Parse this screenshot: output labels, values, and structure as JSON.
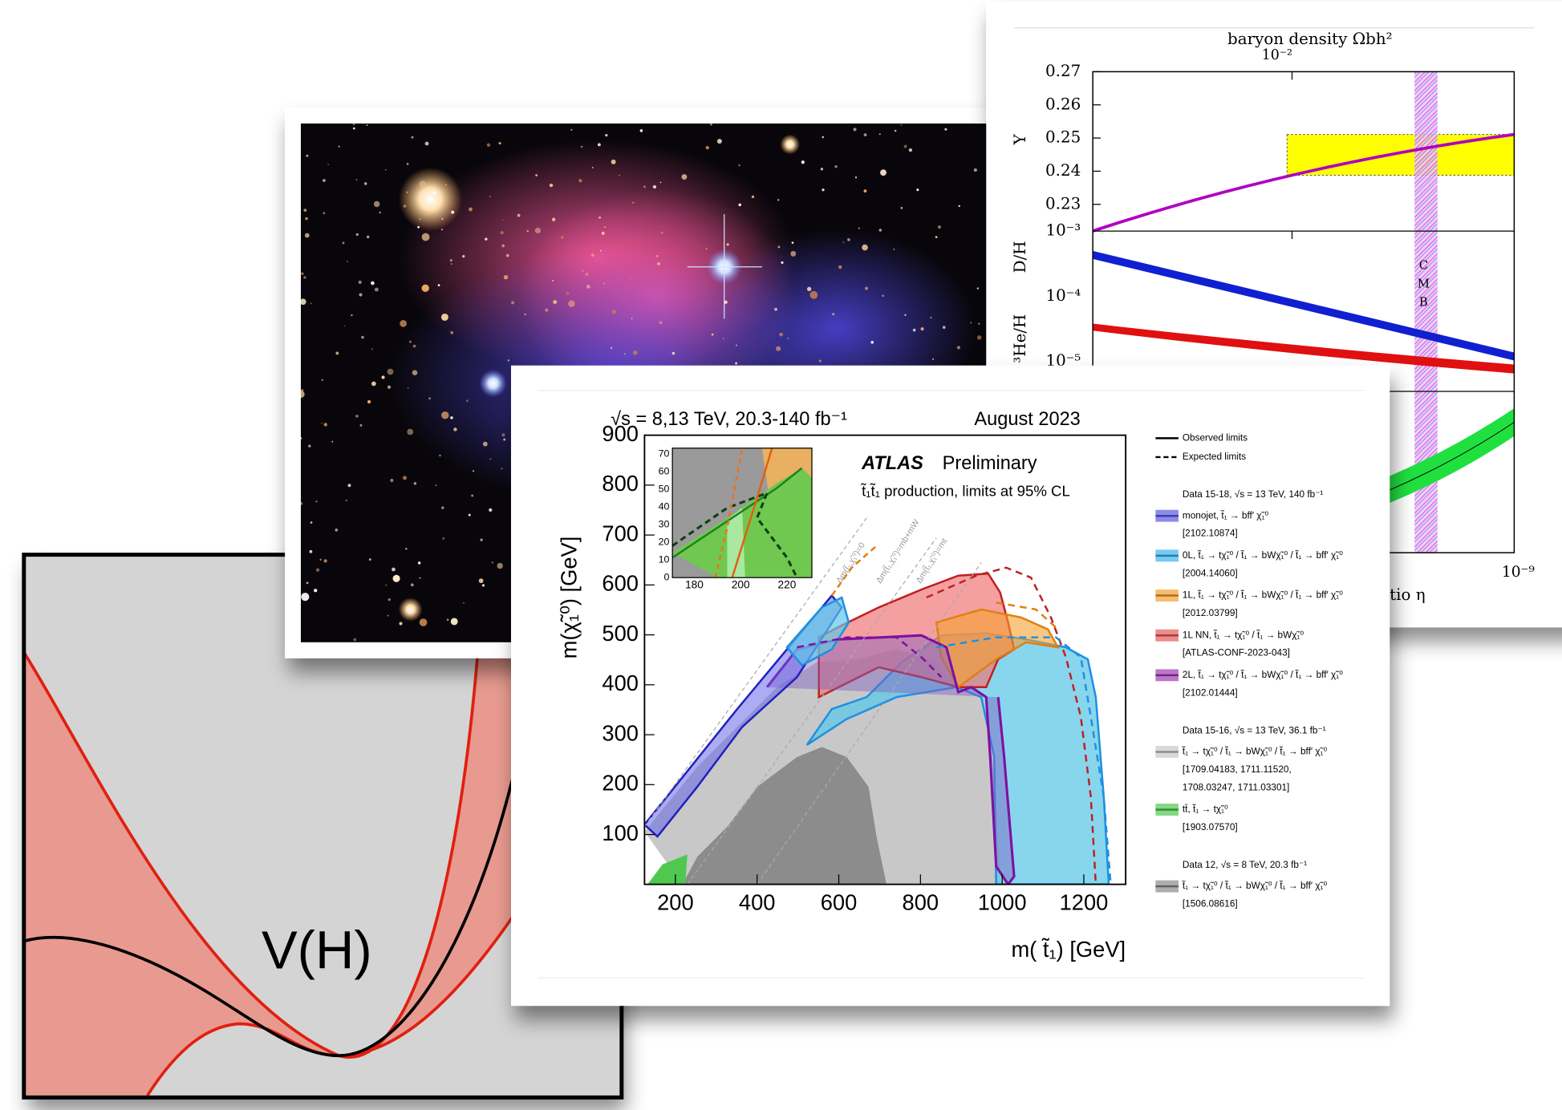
{
  "higgs_panel": {
    "label": "V(H)"
  },
  "bbn_panel": {
    "title": "baryon density Ωbh²",
    "scale_label": "10⁻²",
    "y_label": "Y",
    "y_ticks": [
      "0.27",
      "0.26",
      "0.25",
      "0.24",
      "0.23"
    ],
    "dh_label": "D/H",
    "he_label": "³He/H",
    "log_ticks": [
      "10⁻³",
      "10⁻⁴",
      "10⁻⁵"
    ],
    "cmb_letters": [
      "C",
      "M",
      "B"
    ],
    "x_tick": "10⁻⁹",
    "x_label_fragment": "tio  η"
  },
  "atlas_panel": {
    "energy": "√s = 8,13 TeV, 20.3-140 fb⁻¹",
    "date": "August 2023",
    "experiment": "ATLAS",
    "status": "Preliminary",
    "process": "t̃₁t̃₁ production, limits at 95% CL",
    "y_label": "m(χ̃₁⁰) [GeV]",
    "x_label": "m( t̃₁) [GeV]",
    "y_ticks": [
      "900",
      "800",
      "700",
      "600",
      "500",
      "400",
      "300",
      "200",
      "100"
    ],
    "x_ticks": [
      "200",
      "400",
      "600",
      "800",
      "1000",
      "1200"
    ],
    "inset_y_ticks": [
      "70",
      "60",
      "50",
      "40",
      "30",
      "20",
      "10",
      "0"
    ],
    "inset_x_ticks": [
      "180",
      "200",
      "220"
    ],
    "kinematic_labels": [
      "Δm(t̃₁,χ̃₁⁰)=0",
      "Δm(t̃₁,χ̃₁⁰)=mb+mW",
      "Δm(t̃₁,χ̃₁⁰)=mt"
    ],
    "legend": {
      "observed": "Observed limits",
      "expected": "Expected limits",
      "groups": [
        {
          "header": "Data 15-18, √s = 13 TeV, 140 fb⁻¹",
          "entries": [
            {
              "label": "monojet, t̃₁ → bff′ χ̃₁⁰",
              "color": "#5a5ae6",
              "refs": [
                "[2102.10874]"
              ]
            },
            {
              "label": "0L, t̃₁ → tχ̃₁⁰ / t̃₁ → bWχ̃₁⁰ / t̃₁ → bff′ χ̃₁⁰",
              "color": "#3cb4f0",
              "refs": [
                "[2004.14060]"
              ]
            },
            {
              "label": "1L, t̃₁ → tχ̃₁⁰ / t̃₁ → bWχ̃₁⁰ / t̃₁ → bff′ χ̃₁⁰",
              "color": "#f5a030",
              "refs": [
                "[2012.03799]"
              ]
            },
            {
              "label": "1L NN, t̃₁ → tχ̃₁⁰ / t̃₁ → bWχ̃₁⁰",
              "color": "#e85a5a",
              "refs": [
                "[ATLAS-CONF-2023-043]"
              ]
            },
            {
              "label": "2L, t̃₁ → tχ̃₁⁰ / t̃₁ → bWχ̃₁⁰ / t̃₁ → bff′ χ̃₁⁰",
              "color": "#a03cb4",
              "refs": [
                "[2102.01444]"
              ]
            }
          ]
        },
        {
          "header": "Data 15-16, √s = 13 TeV, 36.1 fb⁻¹",
          "entries": [
            {
              "label": "t̃₁ → tχ̃₁⁰ / t̃₁ → bWχ̃₁⁰ / t̃₁ → bff′ χ̃₁⁰",
              "color": "#c8c8c8",
              "refs": [
                "[1709.04183, 1711.11520,",
                " 1708.03247, 1711.03301]"
              ]
            },
            {
              "label": "tt̄, t̃₁ → tχ̃₁⁰",
              "color": "#50c850",
              "refs": [
                "[1903.07570]"
              ]
            }
          ]
        },
        {
          "header": "Data 12, √s = 8 TeV, 20.3 fb⁻¹",
          "entries": [
            {
              "label": "t̃₁ → tχ̃₁⁰ / t̃₁ → bWχ̃₁⁰ / t̃₁ → bff′ χ̃₁⁰",
              "color": "#8c8c8c",
              "refs": [
                "[1506.08616]"
              ]
            }
          ]
        }
      ]
    }
  }
}
